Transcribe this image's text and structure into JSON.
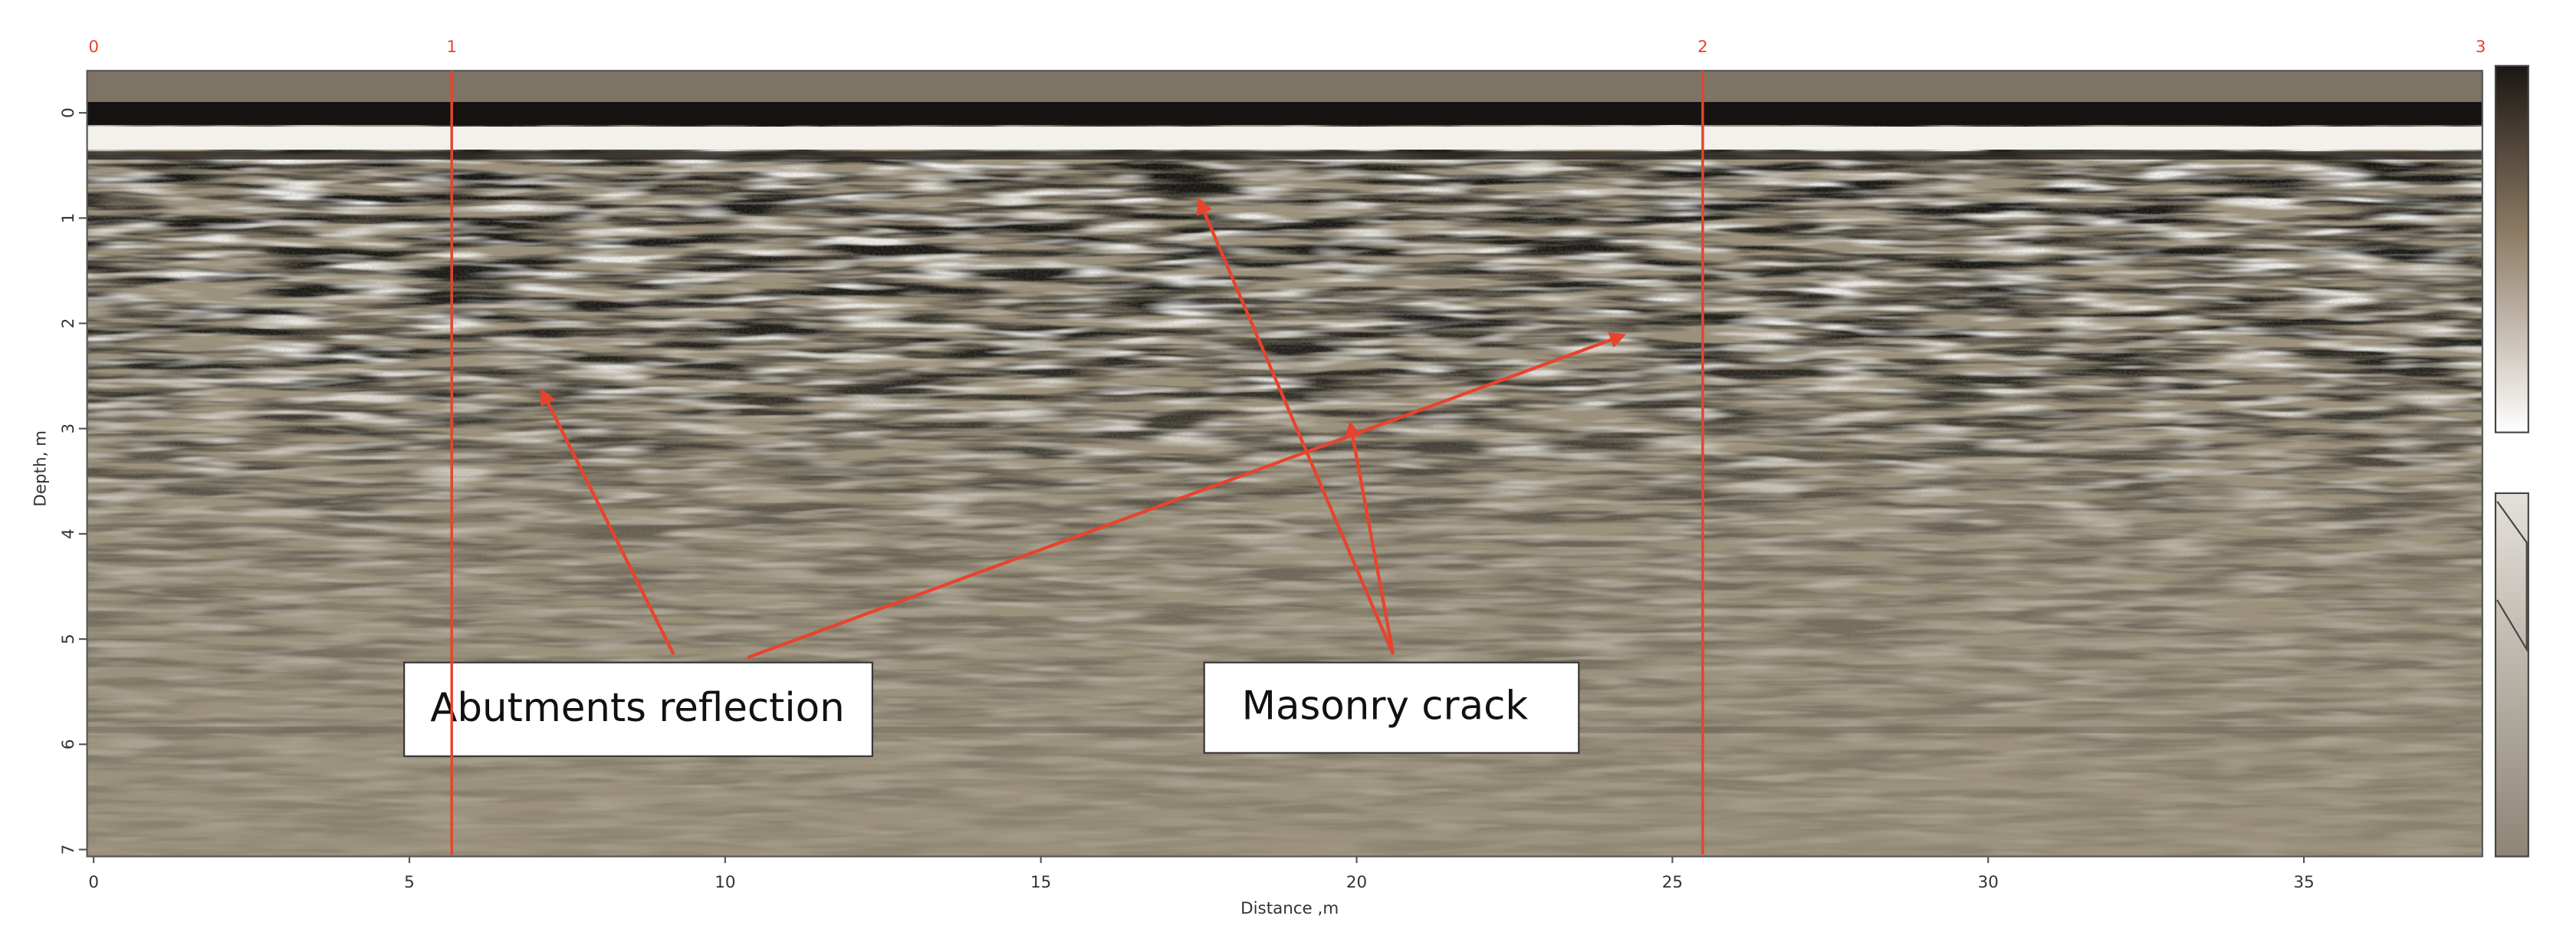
{
  "chart_data": {
    "type": "radargram",
    "x_label": "Distance ,m",
    "y_label": "Depth, m",
    "xlim": [
      0,
      37.8
    ],
    "xticks": [
      0,
      5,
      10,
      15,
      20,
      25,
      30,
      35
    ],
    "ylim": [
      -0.4,
      7.05
    ],
    "yticks": [
      0,
      1,
      2,
      3,
      4,
      5,
      6,
      7
    ],
    "y_inverted": true,
    "markers": [
      {
        "label": "0",
        "x": 0
      },
      {
        "label": "1",
        "x": 5.67
      },
      {
        "label": "2",
        "x": 25.48
      },
      {
        "label": "3",
        "x": 37.8
      }
    ],
    "marker_color": "#e8432c",
    "annotations": [
      "Abutments reflection",
      "Masonry crack"
    ]
  }
}
